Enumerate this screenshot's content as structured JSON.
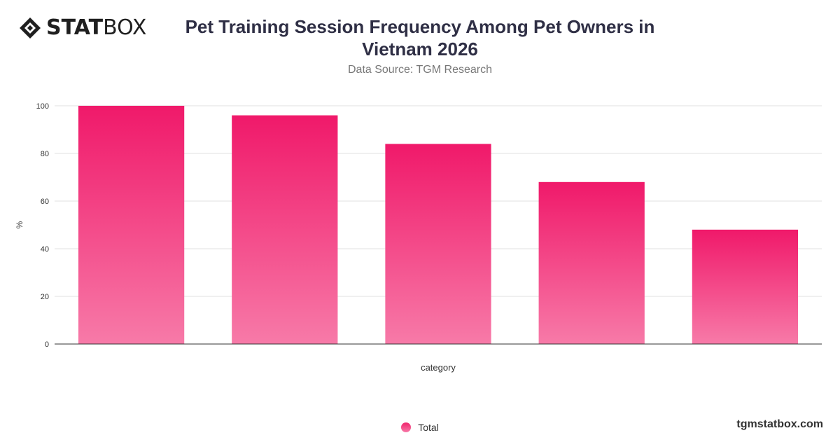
{
  "brand": {
    "logo_bold": "STAT",
    "logo_light": "BOX",
    "footer": "tgmstatbox.com"
  },
  "header": {
    "title": "Pet Training Session Frequency Among Pet Owners in Vietnam 2026",
    "subtitle": "Data Source: TGM Research"
  },
  "legend": {
    "label": "Total"
  },
  "colors": {
    "bar_top": "#f0196a",
    "bar_bottom": "#f77aa8",
    "grid": "#e0e0e0",
    "axis": "#333333"
  },
  "chart_data": {
    "type": "bar",
    "title": "Pet Training Session Frequency Among Pet Owners in Vietnam 2026",
    "subtitle": "Data Source: TGM Research",
    "xlabel": "category",
    "ylabel": "%",
    "categories": [
      "",
      "",
      "",
      "",
      ""
    ],
    "series": [
      {
        "name": "Total",
        "values": [
          100,
          96,
          84,
          68,
          48
        ]
      }
    ],
    "ylim": [
      0,
      100
    ],
    "yticks": [
      0,
      20,
      40,
      60,
      80,
      100
    ],
    "grid": true,
    "legend_position": "bottom"
  }
}
